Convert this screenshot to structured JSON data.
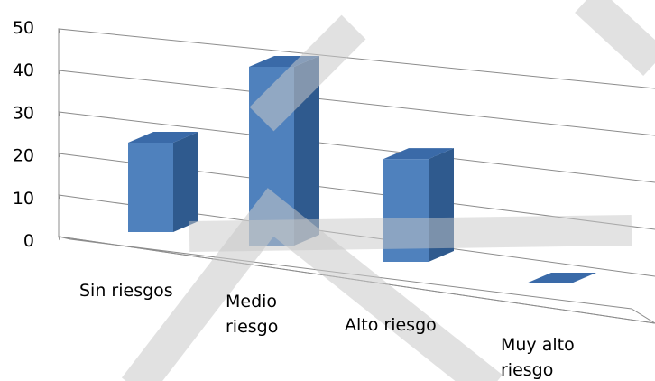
{
  "chart_data": {
    "type": "bar",
    "categories": [
      "Sin riesgos",
      "Medio riesgo",
      "Alto riesgo",
      "Muy alto riesgo"
    ],
    "category_label_lines": [
      [
        "Sin riesgos"
      ],
      [
        "Medio",
        "riesgo"
      ],
      [
        "Alto riesgo"
      ],
      [
        "Muy alto",
        "riesgo"
      ]
    ],
    "values": [
      20,
      40,
      23,
      0
    ],
    "yticks": [
      0,
      10,
      20,
      30,
      40,
      50
    ],
    "ylim": [
      0,
      50
    ],
    "title": "",
    "xlabel": "",
    "ylabel": "",
    "grid": true,
    "legend": "none"
  },
  "colors": {
    "bar_front": "#4f81bd",
    "bar_side": "#2f5a8e",
    "bar_top": "#3a6aa8",
    "grid": "#8c8c8c",
    "watermark": "#c8c8c8"
  }
}
